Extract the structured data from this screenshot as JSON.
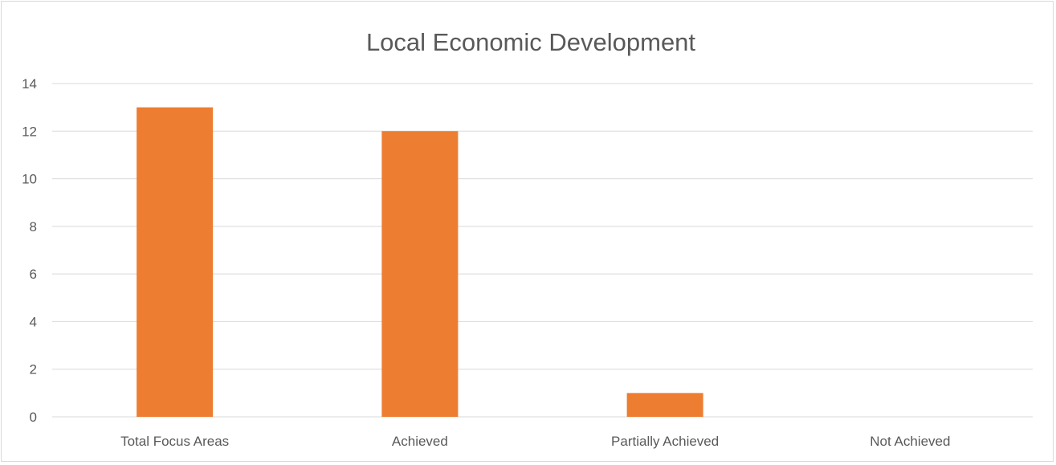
{
  "chart_data": {
    "type": "bar",
    "title": "Local Economic Development",
    "xlabel": "",
    "ylabel": "",
    "categories": [
      "Total Focus Areas",
      "Achieved",
      "Partially Achieved",
      "Not Achieved"
    ],
    "values": [
      13,
      12,
      1,
      0
    ],
    "ylim": [
      0,
      14
    ],
    "y_ticks": [
      0,
      2,
      4,
      6,
      8,
      10,
      12,
      14
    ],
    "grid": true,
    "legend": "none",
    "bar_color": "#ed7d31",
    "grid_color": "#d9d9d9",
    "text_color": "#595959"
  }
}
